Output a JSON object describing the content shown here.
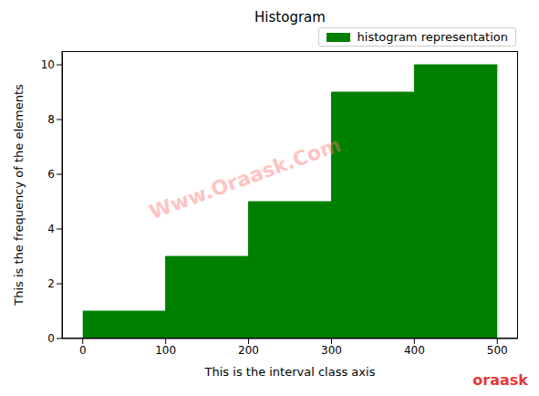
{
  "chart_data": {
    "type": "histogram",
    "title": "Histogram",
    "x_label": "This is the interval class axis",
    "y_label": "This is the frequency of the elements",
    "bins": [
      0,
      100,
      200,
      300,
      400,
      500
    ],
    "series": [
      {
        "name": "histogram representation",
        "color": "#008000",
        "values": [
          1,
          3,
          5,
          9,
          10
        ]
      }
    ],
    "xlim": [
      -25,
      525
    ],
    "xticks": [
      0,
      100,
      200,
      300,
      400,
      500
    ],
    "ylim": [
      0,
      10.5
    ],
    "yticks": [
      0,
      2,
      4,
      6,
      8,
      10
    ],
    "legend": "upper right",
    "grid": false,
    "watermark": "Www.Oraask.Com",
    "logo": "oraask"
  }
}
